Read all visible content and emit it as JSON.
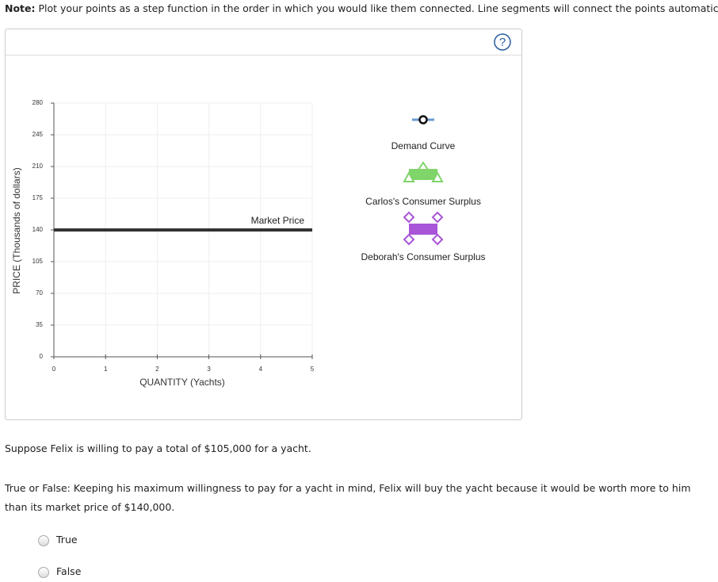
{
  "note": {
    "label": "Note:",
    "text": "Plot your points as a step function in the order in which you would like them connected. Line segments will connect the points automatically."
  },
  "help": "?",
  "chart_data": {
    "type": "line",
    "x_label": "QUANTITY (Yachts)",
    "y_label": "PRICE (Thousands of dollars)",
    "xlim": [
      0,
      5
    ],
    "xticks": [
      0,
      1,
      2,
      3,
      4,
      5
    ],
    "ylim": [
      0,
      280
    ],
    "yticks": [
      0,
      35,
      70,
      105,
      140,
      175,
      210,
      245,
      280
    ],
    "grid": true,
    "series": [
      {
        "name": "Market Price",
        "color": "#333333",
        "x": [
          0,
          5
        ],
        "values": [
          140,
          140
        ]
      }
    ]
  },
  "palette": [
    "Demand Curve",
    "Carlos's Consumer Surplus",
    "Deborah's Consumer Surplus"
  ],
  "question": {
    "intro": "Suppose Felix is willing to pay a total of $105,000 for a yacht.",
    "prompt": "True or False: Keeping his maximum willingness to pay for a yacht in mind, Felix will buy the yacht because it would be worth more to him than its market price of $140,000.",
    "options": [
      "True",
      "False"
    ]
  }
}
